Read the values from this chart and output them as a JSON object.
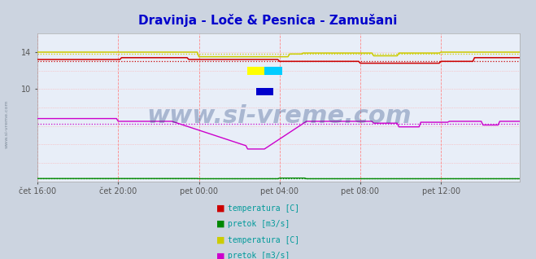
{
  "title": "Dravinja - Loče & Pesnica - Zamušani",
  "title_color": "#0000cc",
  "bg_color": "#ccd4e0",
  "plot_bg_color": "#e8eef8",
  "x_tick_labels": [
    "čet 16:00",
    "čet 20:00",
    "pet 00:00",
    "pet 04:00",
    "pet 08:00",
    "pet 12:00"
  ],
  "x_tick_positions": [
    0,
    48,
    96,
    144,
    192,
    240
  ],
  "n_points": 288,
  "ylim": [
    0,
    16
  ],
  "yticks_labeled": [
    10,
    14
  ],
  "yticks_grid": [
    2,
    4,
    6,
    8,
    10,
    12,
    14
  ],
  "watermark": "www.si-vreme.com",
  "watermark_color": "#1a3a7a",
  "watermark_alpha": 0.3,
  "watermark_fontsize": 22,
  "title_fontsize": 11,
  "legend_text_color": "#009999",
  "series": {
    "red_temp": {
      "color": "#cc0000",
      "avg": 13.0,
      "label": "temperatura [C]"
    },
    "green_flow": {
      "color": "#008800",
      "avg": 0.28,
      "label": "pretok [m3/s]"
    },
    "yellow_temp": {
      "color": "#cccc00",
      "avg": 13.85,
      "label": "temperatura [C]"
    },
    "magenta_flow": {
      "color": "#cc00cc",
      "avg": 6.2,
      "label": "pretok [m3/s]"
    }
  }
}
